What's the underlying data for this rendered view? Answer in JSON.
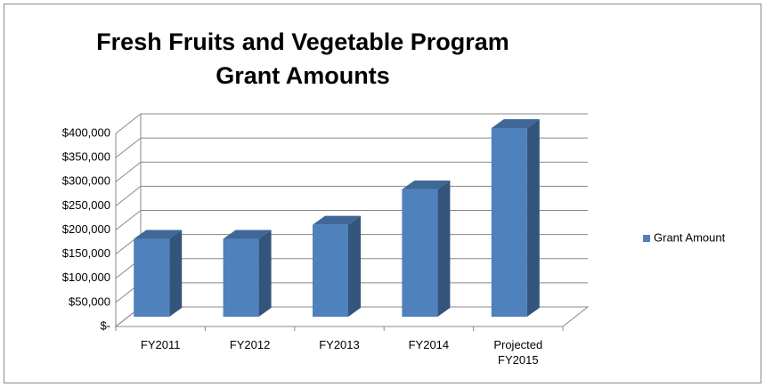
{
  "chart_data": {
    "type": "bar3d",
    "title": "Fresh Fruits and Vegetable Program Grant Amounts",
    "categories": [
      "FY2011",
      "FY2012",
      "FY2013",
      "FY2014",
      "Projected FY2015"
    ],
    "series": [
      {
        "name": "Grant Amount",
        "color": "#4f81bd",
        "values": [
          165000,
          165000,
          195000,
          270000,
          400000
        ]
      }
    ],
    "ylim": [
      0,
      400000
    ],
    "yticks": [
      {
        "value": 0,
        "label": "$-"
      },
      {
        "value": 50000,
        "label": "$50,000"
      },
      {
        "value": 100000,
        "label": "$100,000"
      },
      {
        "value": 150000,
        "label": "$150,000"
      },
      {
        "value": 200000,
        "label": "$200,000"
      },
      {
        "value": 250000,
        "label": "$250,000"
      },
      {
        "value": 300000,
        "label": "$300,000"
      },
      {
        "value": 350000,
        "label": "$350,000"
      },
      {
        "value": 400000,
        "label": "$400,000"
      }
    ],
    "grid": true,
    "legend": "right"
  }
}
